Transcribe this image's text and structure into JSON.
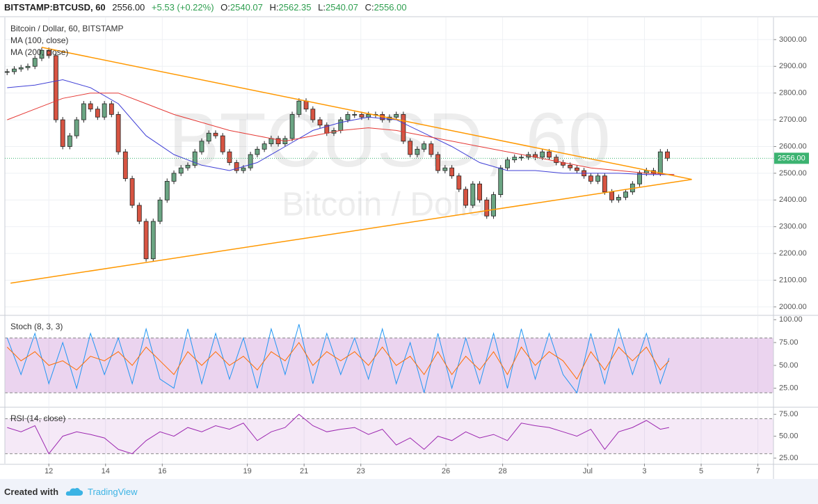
{
  "header": {
    "symbol": "BITSTAMP:BTCUSD, 60",
    "price": "2556.00",
    "change": "+5.53 (+0.22%)",
    "ohlc": [
      {
        "key": "O:",
        "value": "2540.07"
      },
      {
        "key": "H:",
        "value": "2562.35"
      },
      {
        "key": "L:",
        "value": "2540.07"
      },
      {
        "key": "C:",
        "value": "2556.00"
      }
    ]
  },
  "watermark": {
    "symbol": "BTCUSD, 60",
    "name": "Bitcoin / Dollar"
  },
  "chart_data": [
    {
      "type": "candlestick",
      "xlim": [
        10.45,
        37.55
      ],
      "xticks": [
        12,
        14,
        16,
        19,
        21,
        23,
        26,
        28,
        {
          "value": 31,
          "label": "Jul"
        },
        {
          "value": 33,
          "label": "3"
        },
        {
          "value": 35,
          "label": "5"
        },
        {
          "value": 37,
          "label": "7"
        }
      ],
      "ylim": [
        1971,
        3083
      ],
      "yticks": [
        {
          "value": 2000,
          "label": "2000.00"
        },
        {
          "value": 2100,
          "label": "2100.00"
        },
        {
          "value": 2200,
          "label": "2200.00"
        },
        {
          "value": 2300,
          "label": "2300.00"
        },
        {
          "value": 2400,
          "label": "2400.00"
        },
        {
          "value": 2500,
          "label": "2500.00"
        },
        {
          "value": 2600,
          "label": "2600.00"
        },
        {
          "value": 2700,
          "label": "2700.00"
        },
        {
          "value": 2800,
          "label": "2800.00"
        },
        {
          "value": 2900,
          "label": "2900.00"
        },
        {
          "value": 3000,
          "label": "3000.00"
        }
      ],
      "grid": true,
      "up_color": "#6ba583",
      "down_color": "#d75442",
      "series": [
        {
          "name": "Bitcoin / Dollar, 60, BITSTAMP",
          "x": [
            10.53,
            10.78,
            11.02,
            11.26,
            11.51,
            11.75,
            12.0,
            12.25,
            12.49,
            12.74,
            12.98,
            13.23,
            13.47,
            13.72,
            13.96,
            14.21,
            14.45,
            14.7,
            14.94,
            15.19,
            15.43,
            15.68,
            15.92,
            16.17,
            16.41,
            16.66,
            16.9,
            17.15,
            17.39,
            17.64,
            17.88,
            18.13,
            18.37,
            18.62,
            18.86,
            19.11,
            19.35,
            19.6,
            19.84,
            20.09,
            20.33,
            20.58,
            20.82,
            21.07,
            21.31,
            21.56,
            21.8,
            22.05,
            22.29,
            22.54,
            22.78,
            23.03,
            23.27,
            23.52,
            23.76,
            24.01,
            24.25,
            24.5,
            24.74,
            24.99,
            25.23,
            25.48,
            25.72,
            25.97,
            26.21,
            26.46,
            26.7,
            26.95,
            27.19,
            27.44,
            27.68,
            27.93,
            28.17,
            28.42,
            28.66,
            28.91,
            29.15,
            29.4,
            29.64,
            29.89,
            30.13,
            30.38,
            30.62,
            30.87,
            31.11,
            31.36,
            31.6,
            31.85,
            32.09,
            32.34,
            32.58,
            32.83,
            33.07,
            33.32,
            33.56,
            33.81
          ],
          "values": [
            2880,
            2890,
            2895,
            2900,
            2930,
            2960,
            2940,
            2700,
            2600,
            2640,
            2700,
            2760,
            2740,
            2710,
            2760,
            2720,
            2580,
            2480,
            2380,
            2320,
            2180,
            2320,
            2400,
            2470,
            2500,
            2520,
            2530,
            2580,
            2620,
            2650,
            2640,
            2580,
            2540,
            2510,
            2520,
            2570,
            2590,
            2610,
            2630,
            2610,
            2630,
            2720,
            2770,
            2740,
            2700,
            2680,
            2650,
            2660,
            2700,
            2720,
            2720,
            2710,
            2720,
            2720,
            2700,
            2710,
            2720,
            2620,
            2570,
            2590,
            2610,
            2570,
            2510,
            2520,
            2490,
            2440,
            2380,
            2460,
            2400,
            2340,
            2420,
            2520,
            2550,
            2560,
            2560,
            2570,
            2560,
            2580,
            2560,
            2540,
            2530,
            2520,
            2510,
            2490,
            2470,
            2490,
            2430,
            2400,
            2410,
            2430,
            2460,
            2500,
            2510,
            2500,
            2580,
            2556
          ]
        },
        {
          "name": "MA (100, close)",
          "color": "#3f3fd6",
          "x": [
            10.53,
            11.51,
            12.49,
            13.47,
            14.45,
            15.43,
            16.41,
            17.39,
            18.37,
            19.35,
            20.33,
            21.31,
            22.29,
            23.27,
            24.25,
            25.23,
            26.21,
            27.19,
            28.17,
            29.15,
            30.13,
            31.11,
            32.09,
            33.07,
            34.05
          ],
          "values": [
            2820,
            2830,
            2850,
            2820,
            2760,
            2640,
            2570,
            2530,
            2510,
            2540,
            2600,
            2660,
            2690,
            2710,
            2700,
            2650,
            2600,
            2540,
            2510,
            2510,
            2500,
            2500,
            2500,
            2495,
            2495
          ]
        },
        {
          "name": "MA (200, close)",
          "color": "#e53935",
          "x": [
            10.53,
            11.51,
            12.49,
            13.47,
            14.45,
            15.43,
            16.41,
            17.39,
            18.37,
            19.35,
            20.33,
            21.31,
            22.29,
            23.27,
            24.25,
            25.23,
            26.21,
            27.19,
            28.17,
            29.15,
            30.13,
            31.11,
            32.09,
            33.07,
            34.05
          ],
          "values": [
            2700,
            2740,
            2780,
            2800,
            2800,
            2760,
            2720,
            2690,
            2660,
            2640,
            2620,
            2640,
            2660,
            2670,
            2660,
            2640,
            2620,
            2600,
            2580,
            2560,
            2540,
            2520,
            2510,
            2500,
            2495
          ]
        }
      ],
      "trendlines": [
        {
          "color": "#ff9800",
          "x": [
            11.75,
            34.67
          ],
          "values": [
            2971,
            2477
          ]
        },
        {
          "color": "#ff9800",
          "x": [
            10.65,
            34.67
          ],
          "values": [
            2089,
            2477
          ]
        }
      ],
      "last_price": {
        "value": 2556,
        "label": "2556.00",
        "color": "#3cb371"
      }
    },
    {
      "type": "line",
      "title": "Stoch (8, 3, 3)",
      "ylim": [
        5,
        104
      ],
      "yticks": [
        {
          "value": 25,
          "label": "25.00"
        },
        {
          "value": 50,
          "label": "50.00"
        },
        {
          "value": 75,
          "label": "75.00"
        },
        {
          "value": 100,
          "label": "100.00"
        }
      ],
      "band": [
        20,
        80
      ],
      "band_color": "#9c27b0",
      "x": [
        10.53,
        11.02,
        11.51,
        12.0,
        12.49,
        12.98,
        13.47,
        13.96,
        14.45,
        14.94,
        15.43,
        15.92,
        16.41,
        16.9,
        17.39,
        17.88,
        18.37,
        18.86,
        19.35,
        19.84,
        20.33,
        20.82,
        21.31,
        21.8,
        22.29,
        22.78,
        23.27,
        23.76,
        24.25,
        24.74,
        25.23,
        25.72,
        26.21,
        26.7,
        27.19,
        27.68,
        28.17,
        28.66,
        29.15,
        29.64,
        30.13,
        30.62,
        31.11,
        31.6,
        32.09,
        32.58,
        33.07,
        33.56,
        33.87
      ],
      "series": [
        {
          "color": "#2196f3",
          "values": [
            80,
            40,
            85,
            30,
            75,
            25,
            85,
            40,
            80,
            30,
            90,
            35,
            25,
            90,
            30,
            85,
            35,
            80,
            25,
            90,
            40,
            95,
            30,
            85,
            40,
            80,
            35,
            90,
            30,
            75,
            20,
            85,
            25,
            80,
            30,
            85,
            25,
            90,
            35,
            85,
            40,
            20,
            85,
            30,
            90,
            40,
            85,
            30,
            58
          ]
        },
        {
          "color": "#ff6d00",
          "values": [
            70,
            55,
            65,
            50,
            55,
            45,
            60,
            55,
            65,
            50,
            70,
            55,
            40,
            65,
            50,
            65,
            50,
            60,
            45,
            65,
            55,
            75,
            50,
            65,
            55,
            65,
            50,
            70,
            50,
            60,
            40,
            65,
            40,
            60,
            45,
            65,
            40,
            70,
            50,
            65,
            55,
            35,
            65,
            45,
            70,
            55,
            70,
            45,
            55
          ]
        }
      ]
    },
    {
      "type": "line",
      "title": "RSI (14, close)",
      "ylim": [
        18.7,
        82.3
      ],
      "yticks": [
        {
          "value": 25,
          "label": "25.00"
        },
        {
          "value": 50,
          "label": "50.00"
        },
        {
          "value": 75,
          "label": "75.00"
        }
      ],
      "band": [
        30,
        70
      ],
      "band_color": "#9c27b0",
      "x": [
        10.53,
        11.02,
        11.51,
        12.0,
        12.49,
        12.98,
        13.47,
        13.96,
        14.45,
        14.94,
        15.43,
        15.92,
        16.41,
        16.9,
        17.39,
        17.88,
        18.37,
        18.86,
        19.35,
        19.84,
        20.33,
        20.82,
        21.31,
        21.8,
        22.29,
        22.78,
        23.27,
        23.76,
        24.25,
        24.74,
        25.23,
        25.72,
        26.21,
        26.7,
        27.19,
        27.68,
        28.17,
        28.66,
        29.15,
        29.64,
        30.13,
        30.62,
        31.11,
        31.6,
        32.09,
        32.58,
        33.07,
        33.56,
        33.87
      ],
      "series": [
        {
          "color": "#9c27b0",
          "values": [
            60,
            55,
            62,
            30,
            50,
            55,
            52,
            48,
            35,
            30,
            45,
            55,
            50,
            60,
            55,
            62,
            58,
            65,
            45,
            55,
            60,
            75,
            62,
            55,
            58,
            60,
            52,
            58,
            40,
            48,
            35,
            50,
            45,
            55,
            48,
            52,
            45,
            65,
            62,
            60,
            55,
            50,
            58,
            35,
            55,
            60,
            68,
            58,
            60
          ]
        }
      ]
    }
  ],
  "footer": {
    "created": "Created with",
    "brand": "TradingView"
  }
}
